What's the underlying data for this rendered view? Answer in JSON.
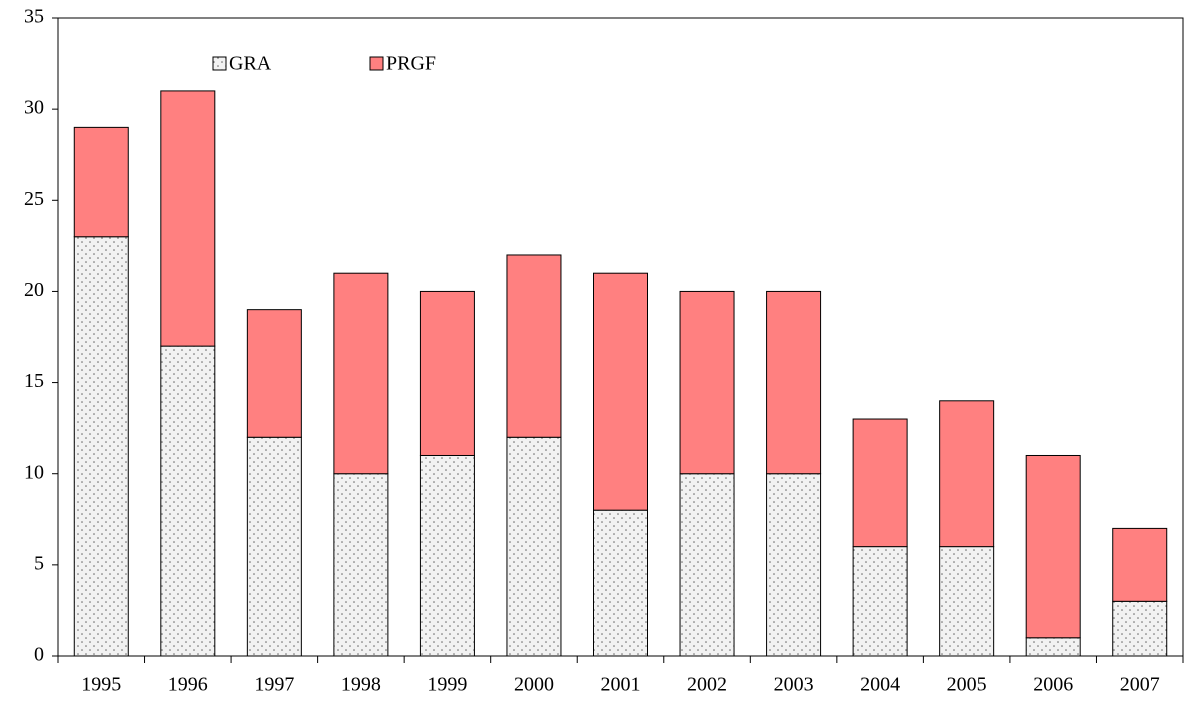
{
  "chart_data": {
    "type": "stacked_bar",
    "categories": [
      "1995",
      "1996",
      "1997",
      "1998",
      "1999",
      "2000",
      "2001",
      "2002",
      "2003",
      "2004",
      "2005",
      "2006",
      "2007"
    ],
    "series": [
      {
        "name": "GRA",
        "color": "#f2f2f2",
        "values": [
          23,
          17,
          12,
          10,
          11,
          12,
          8,
          10,
          10,
          6,
          6,
          1,
          3
        ]
      },
      {
        "name": "PRGF",
        "color": "#ff8080",
        "values": [
          6,
          14,
          7,
          11,
          9,
          10,
          13,
          10,
          10,
          7,
          8,
          10,
          4
        ]
      }
    ],
    "ylim": [
      0,
      35
    ],
    "yticks": [
      0,
      5,
      10,
      15,
      20,
      25,
      30,
      35
    ],
    "grid": false
  }
}
